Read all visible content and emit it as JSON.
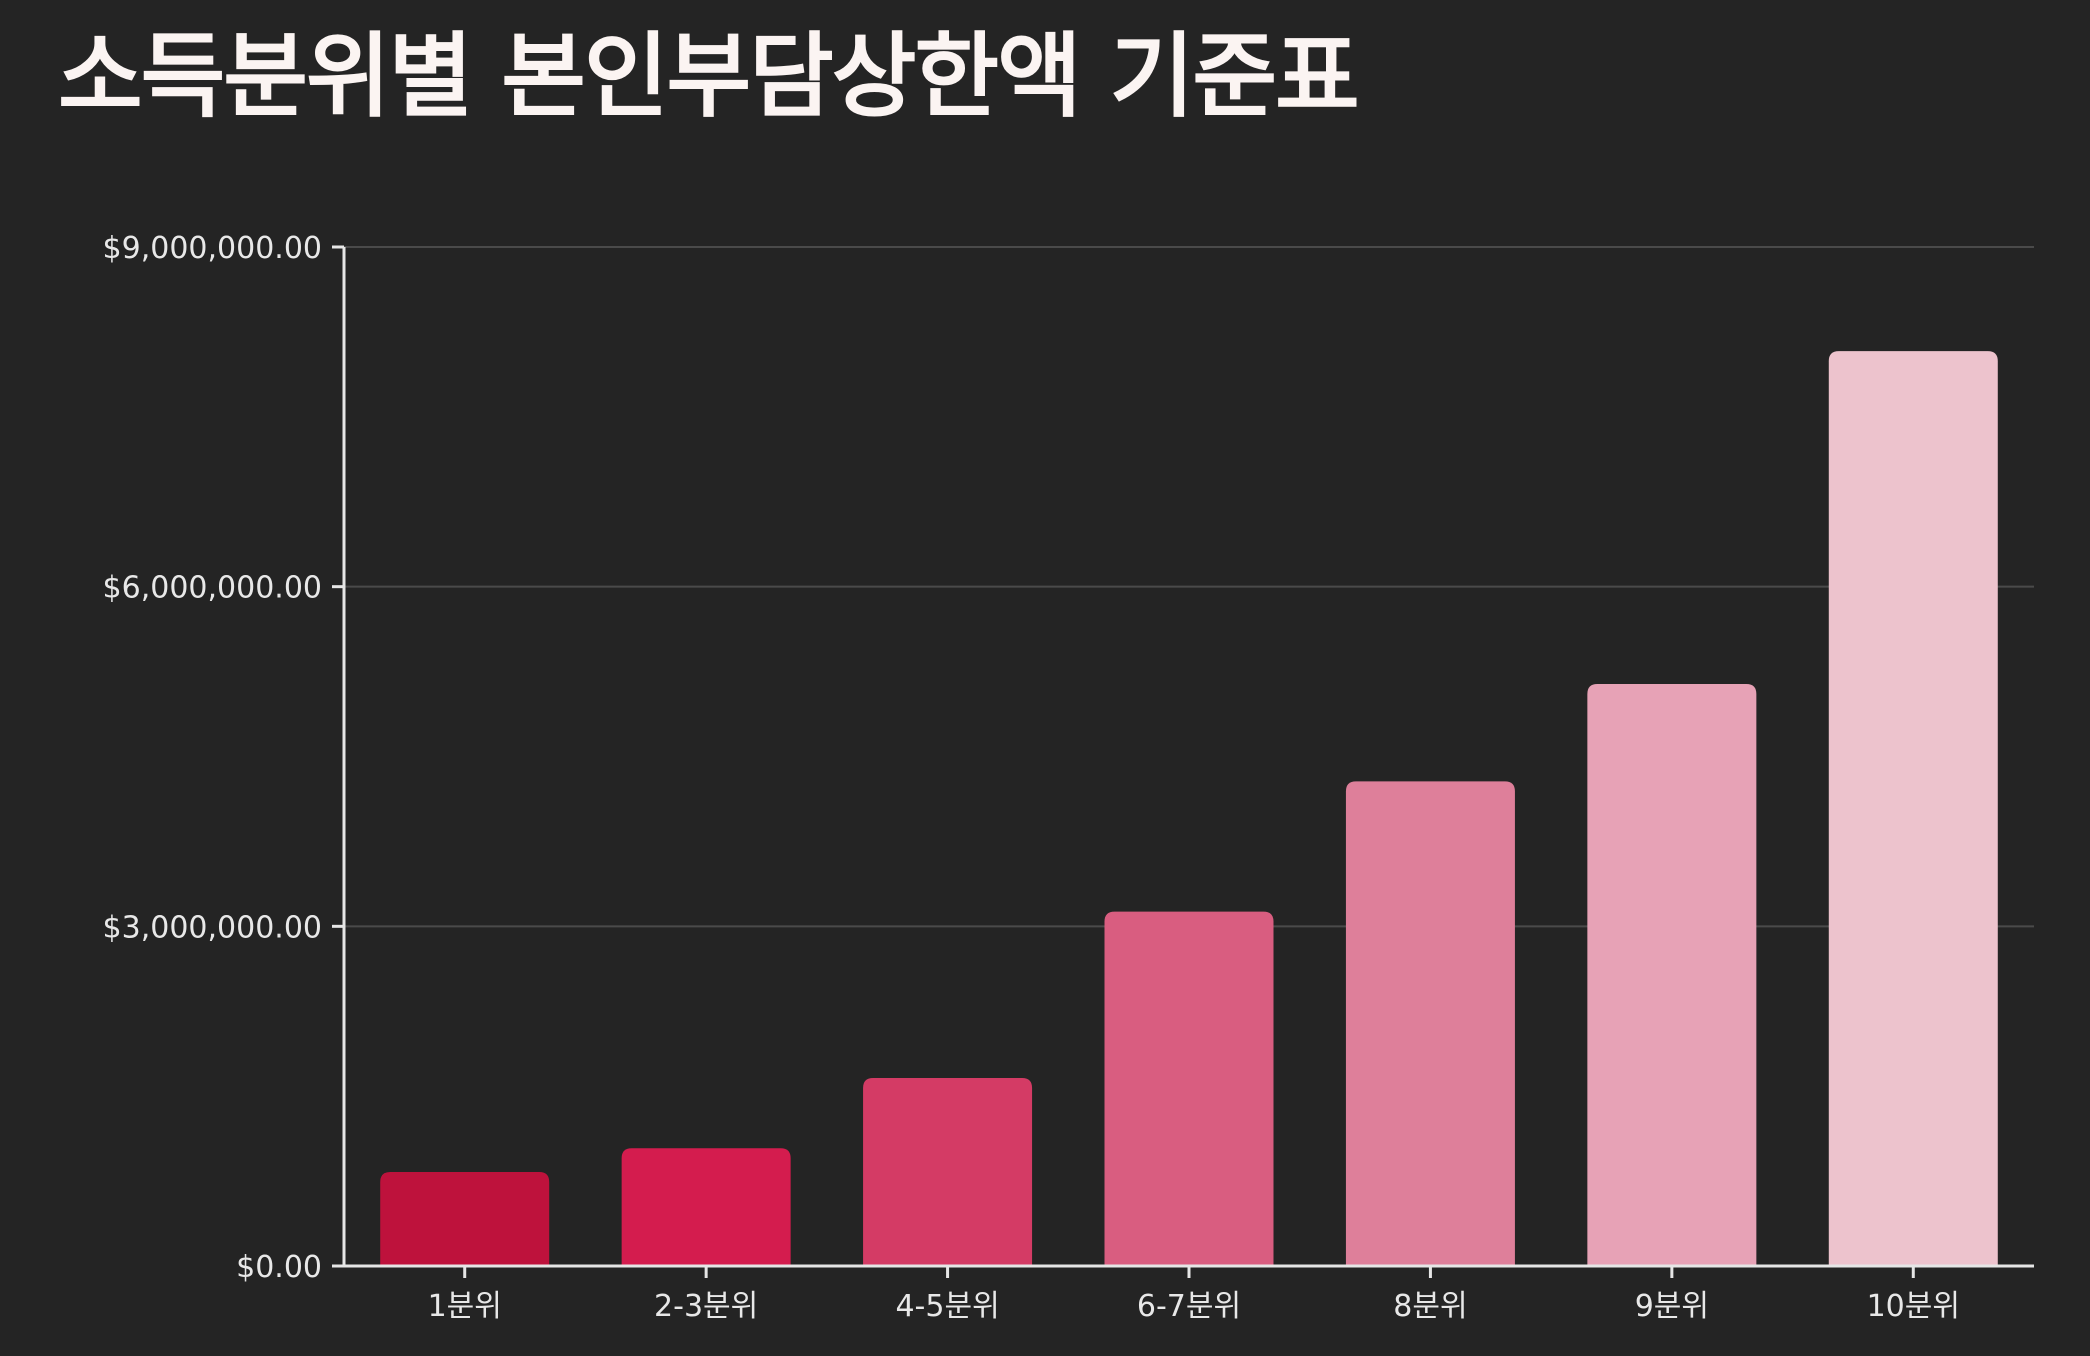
{
  "chart_data": {
    "type": "bar",
    "title": "소득분위별 본인부담상한액 기준표",
    "xlabel": "",
    "ylabel": "",
    "categories": [
      "1분위",
      "2-3분위",
      "4-5분위",
      "6-7분위",
      "8분위",
      "9분위",
      "10분위"
    ],
    "values": [
      830000,
      1040000,
      1660000,
      3130000,
      4280000,
      5140000,
      8080000
    ],
    "ylim": [
      0,
      9000000
    ],
    "y_ticks": [
      0,
      3000000,
      6000000,
      9000000
    ],
    "y_tick_labels": [
      "$0.00",
      "$3,000,000.00",
      "$6,000,000.00",
      "$9,000,000.00"
    ],
    "grid": true,
    "legend": "none",
    "bar_colors": [
      "#be123c",
      "#d41c4e",
      "#d43b65",
      "#d95d80",
      "#de7f9a",
      "#e7a2b6",
      "#edc3cd"
    ],
    "colors": {
      "background": "#242424",
      "title": "#fbf4f2",
      "axis": "#e6e6e6",
      "grid": "#4a4a4a",
      "tick_text": "#e8e8e8"
    }
  }
}
